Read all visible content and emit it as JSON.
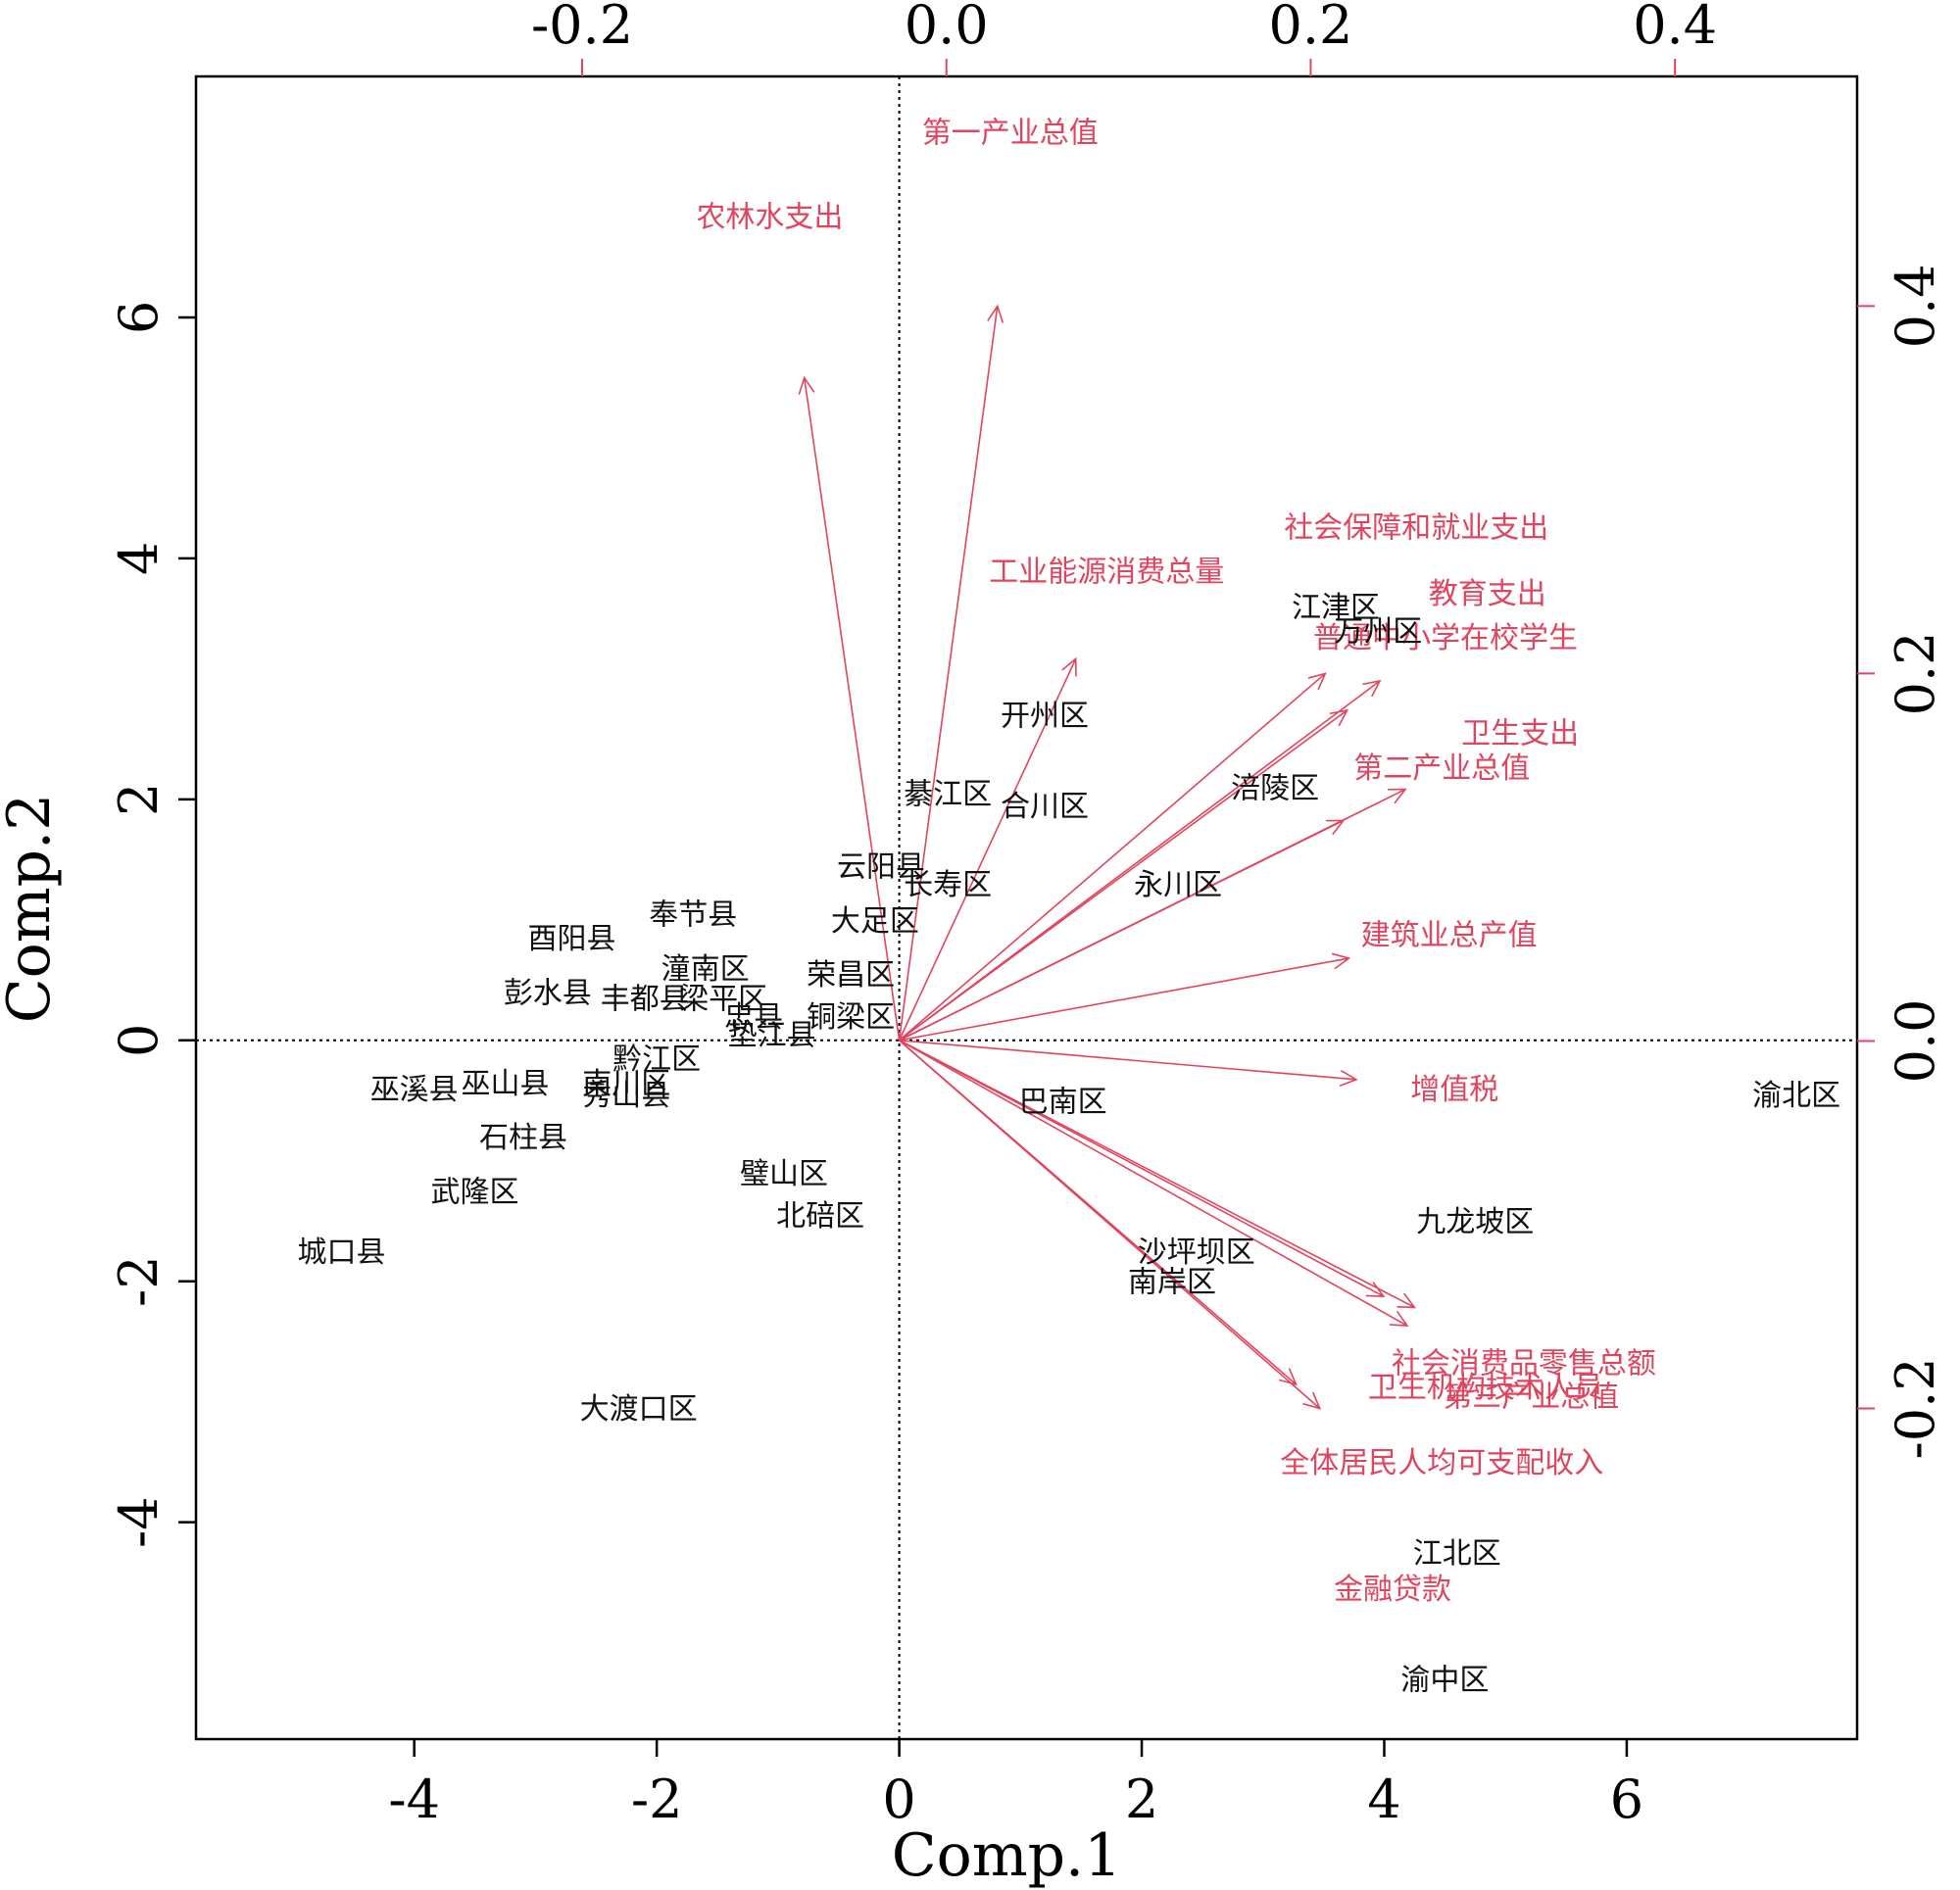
{
  "chart_data": {
    "type": "biplot",
    "xlabel": "Comp.1",
    "ylabel": "Comp.2",
    "xlim": [
      -5.8,
      7.9
    ],
    "ylim": [
      -5.8,
      8.0
    ],
    "xlim_top": [
      -0.412,
      0.5
    ],
    "ylim_right": [
      -0.38,
      0.525
    ],
    "bottom_ticks": [
      -4,
      -2,
      0,
      2,
      4,
      6
    ],
    "bottom_tick_labels": [
      "-4",
      "-2",
      "0",
      "2",
      "4",
      "6"
    ],
    "left_ticks": [
      -4,
      -2,
      0,
      2,
      4,
      6
    ],
    "left_tick_labels": [
      "-4",
      "-2",
      "0",
      "2",
      "4",
      "6"
    ],
    "top_ticks": [
      -0.2,
      0.0,
      0.2,
      0.4
    ],
    "top_tick_labels": [
      "-0.2",
      "0.0",
      "0.2",
      "0.4"
    ],
    "right_ticks": [
      -0.2,
      0.0,
      0.2,
      0.4
    ],
    "right_tick_labels": [
      "-0.2",
      "0.0",
      "0.2",
      "0.4"
    ],
    "colors": {
      "observations": "#111111",
      "variables": "#e0455f",
      "frame": "#000000"
    },
    "observations": [
      {
        "label": "渝北区",
        "x": 7.4,
        "y": -0.45
      },
      {
        "label": "九龙坡区",
        "x": 4.75,
        "y": -1.5
      },
      {
        "label": "江北区",
        "x": 4.6,
        "y": -4.25
      },
      {
        "label": "渝中区",
        "x": 4.5,
        "y": -5.3
      },
      {
        "label": "沙坪坝区",
        "x": 2.45,
        "y": -1.75
      },
      {
        "label": "南岸区",
        "x": 2.25,
        "y": -2.0
      },
      {
        "label": "巴南区",
        "x": 1.35,
        "y": -0.5
      },
      {
        "label": "江津区",
        "x": 3.6,
        "y": 3.6
      },
      {
        "label": "万州区",
        "x": 3.95,
        "y": 3.4
      },
      {
        "label": "涪陵区",
        "x": 3.1,
        "y": 2.1
      },
      {
        "label": "永川区",
        "x": 2.3,
        "y": 1.3
      },
      {
        "label": "开州区",
        "x": 1.2,
        "y": 2.7
      },
      {
        "label": "合川区",
        "x": 1.2,
        "y": 1.95
      },
      {
        "label": "綦江区",
        "x": 0.4,
        "y": 2.05
      },
      {
        "label": "长寿区",
        "x": 0.4,
        "y": 1.3
      },
      {
        "label": "云阳县",
        "x": -0.15,
        "y": 1.45
      },
      {
        "label": "大足区",
        "x": -0.2,
        "y": 1.0
      },
      {
        "label": "荣昌区",
        "x": -0.4,
        "y": 0.55
      },
      {
        "label": "铜梁区",
        "x": -0.4,
        "y": 0.2
      },
      {
        "label": "垫江县",
        "x": -1.05,
        "y": 0.05
      },
      {
        "label": "忠县",
        "x": -1.2,
        "y": 0.2
      },
      {
        "label": "梁平区",
        "x": -1.45,
        "y": 0.35
      },
      {
        "label": "潼南区",
        "x": -1.6,
        "y": 0.6
      },
      {
        "label": "奉节县",
        "x": -1.7,
        "y": 1.05
      },
      {
        "label": "酉阳县",
        "x": -2.7,
        "y": 0.85
      },
      {
        "label": "丰都县",
        "x": -2.1,
        "y": 0.35
      },
      {
        "label": "彭水县",
        "x": -2.9,
        "y": 0.4
      },
      {
        "label": "黔江区",
        "x": -2.0,
        "y": -0.15
      },
      {
        "label": "南川区",
        "x": -2.25,
        "y": -0.35
      },
      {
        "label": "秀山县",
        "x": -2.25,
        "y": -0.45
      },
      {
        "label": "巫溪县",
        "x": -4.0,
        "y": -0.4
      },
      {
        "label": "巫山县",
        "x": -3.25,
        "y": -0.35
      },
      {
        "label": "石柱县",
        "x": -3.1,
        "y": -0.8
      },
      {
        "label": "武隆区",
        "x": -3.5,
        "y": -1.25
      },
      {
        "label": "城口县",
        "x": -4.6,
        "y": -1.75
      },
      {
        "label": "璧山区",
        "x": -0.95,
        "y": -1.1
      },
      {
        "label": "北碚区",
        "x": -0.65,
        "y": -1.45
      },
      {
        "label": "大渡口区",
        "x": -2.15,
        "y": -3.05
      }
    ],
    "variables": [
      {
        "label": "第一产业总值",
        "x": 0.028,
        "y": 0.4,
        "lx": 0.035,
        "ly": 0.495
      },
      {
        "label": "农林水支出",
        "x": -0.078,
        "y": 0.361,
        "lx": -0.097,
        "ly": 0.449
      },
      {
        "label": "工业能源消费总量",
        "x": 0.071,
        "y": 0.208,
        "lx": 0.088,
        "ly": 0.256
      },
      {
        "label": "社会保障和就业支出",
        "x": 0.208,
        "y": 0.2,
        "lx": 0.258,
        "ly": 0.28
      },
      {
        "label": "教育支出",
        "x": 0.238,
        "y": 0.196,
        "lx": 0.297,
        "ly": 0.244
      },
      {
        "label": "普通中小学在校学生",
        "x": 0.22,
        "y": 0.18,
        "lx": 0.274,
        "ly": 0.22
      },
      {
        "label": "卫生支出",
        "x": 0.218,
        "y": 0.12,
        "lx": 0.315,
        "ly": 0.168
      },
      {
        "label": "第二产业总值",
        "x": 0.252,
        "y": 0.137,
        "lx": 0.272,
        "ly": 0.149
      },
      {
        "label": "建筑业总产值",
        "x": 0.221,
        "y": 0.045,
        "lx": 0.276,
        "ly": 0.058
      },
      {
        "label": "增值税",
        "x": 0.225,
        "y": -0.021,
        "lx": 0.279,
        "ly": -0.026
      },
      {
        "label": "社会消费品零售总额",
        "x": 0.257,
        "y": -0.145,
        "lx": 0.317,
        "ly": -0.175
      },
      {
        "label": "卫生机构技术人员",
        "x": 0.24,
        "y": -0.139,
        "lx": 0.296,
        "ly": -0.188
      },
      {
        "label": "第三产业总值",
        "x": 0.253,
        "y": -0.155,
        "lx": 0.321,
        "ly": -0.193
      },
      {
        "label": "全体居民人均可支配收入",
        "x": 0.192,
        "y": -0.187,
        "lx": 0.272,
        "ly": -0.229
      },
      {
        "label": "金融贷款",
        "x": 0.205,
        "y": -0.2,
        "lx": 0.245,
        "ly": -0.298
      }
    ]
  }
}
